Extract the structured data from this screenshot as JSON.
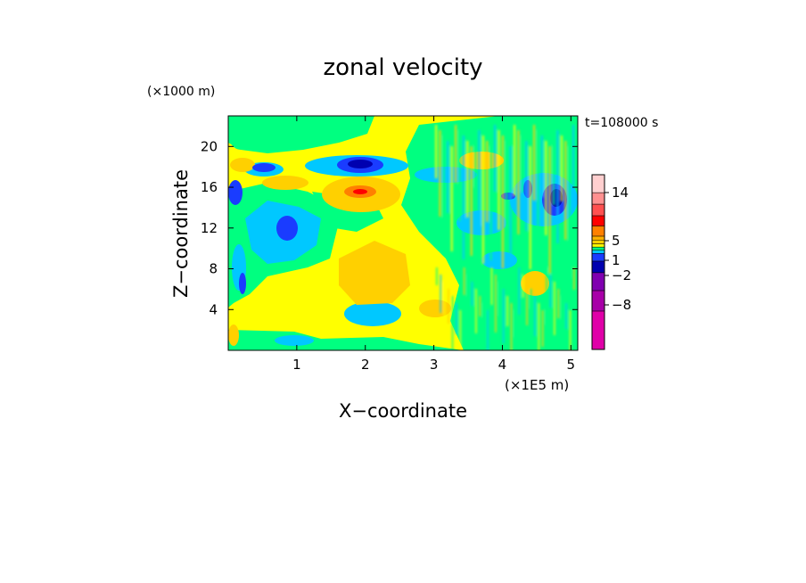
{
  "chart_data": {
    "type": "heatmap",
    "title": "zonal velocity",
    "xlabel": "X−coordinate",
    "ylabel": "Z−coordinate",
    "x_unit": "(×1E5 m)",
    "y_unit": "(×1000 m)",
    "time_label": "t=108000 s",
    "xlim": [
      0,
      5.1
    ],
    "ylim": [
      0,
      23
    ],
    "x_ticks": [
      "1",
      "2",
      "3",
      "4",
      "5"
    ],
    "y_ticks": [
      "4",
      "8",
      "12",
      "16",
      "20"
    ],
    "colorbar_labels": [
      "14",
      "5",
      "1",
      "−2",
      "−8"
    ],
    "colorbar_colors": [
      "#e000a8",
      "#a800a8",
      "#8000b0",
      "#0000b0",
      "#1a3cff",
      "#00c8ff",
      "#00ff80",
      "#ffff00",
      "#ffd000",
      "#ffb000",
      "#ff8000",
      "#ff0000",
      "#ff5050",
      "#ff9090",
      "#ffcfcf"
    ],
    "features": [
      {
        "kind": "background",
        "level": "yellow"
      },
      {
        "kind": "blob",
        "x": 2.05,
        "z": 16.2,
        "level": "orange"
      },
      {
        "kind": "blob",
        "x": 1.95,
        "z": 15.5,
        "level": "red"
      },
      {
        "kind": "blob",
        "x": 1.9,
        "z": 18.0,
        "level": "blue"
      },
      {
        "kind": "blob",
        "x": 0.85,
        "z": 12.0,
        "level": "blue"
      },
      {
        "kind": "blob",
        "x": 4.75,
        "z": 14.8,
        "level": "blue"
      },
      {
        "kind": "blob",
        "x": 0.5,
        "z": 17.8,
        "level": "blue"
      },
      {
        "kind": "blob",
        "x": 0.05,
        "z": 15.5,
        "level": "blue"
      },
      {
        "kind": "blob",
        "x": 1.3,
        "z": 11.5,
        "level": "cyan"
      },
      {
        "kind": "blob",
        "x": 2.4,
        "z": 6.0,
        "level": "orange"
      },
      {
        "kind": "blob",
        "x": 2.2,
        "z": 3.5,
        "level": "cyan"
      },
      {
        "kind": "band",
        "z": 1.0,
        "level": "green"
      }
    ]
  }
}
